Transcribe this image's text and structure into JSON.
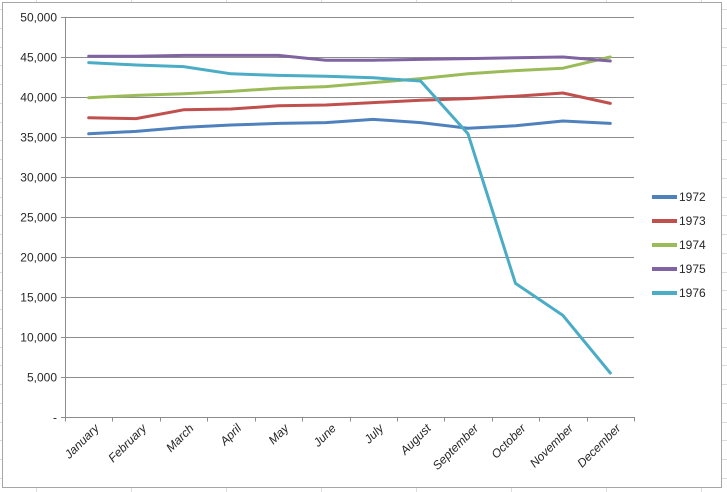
{
  "chart_data": {
    "type": "line",
    "title": "",
    "xlabel": "",
    "ylabel": "",
    "categories": [
      "January",
      "February",
      "March",
      "April",
      "May",
      "June",
      "July",
      "August",
      "September",
      "October",
      "November",
      "December"
    ],
    "series": [
      {
        "name": "1972",
        "color": "#4F81BD",
        "values": [
          35400,
          35700,
          36200,
          36500,
          36700,
          36800,
          37200,
          36800,
          36100,
          36400,
          37000,
          36700
        ]
      },
      {
        "name": "1973",
        "color": "#C0504D",
        "values": [
          37400,
          37300,
          38400,
          38500,
          38900,
          39000,
          39300,
          39600,
          39800,
          40100,
          40500,
          39200
        ]
      },
      {
        "name": "1974",
        "color": "#9BBB59",
        "values": [
          39900,
          40200,
          40400,
          40700,
          41100,
          41300,
          41800,
          42300,
          42900,
          43300,
          43600,
          45000
        ]
      },
      {
        "name": "1975",
        "color": "#8064A2",
        "values": [
          45100,
          45100,
          45200,
          45200,
          45200,
          44600,
          44600,
          44700,
          44800,
          44900,
          45000,
          44500
        ]
      },
      {
        "name": "1976",
        "color": "#4BACC6",
        "values": [
          44300,
          44000,
          43800,
          42900,
          42700,
          42600,
          42400,
          42000,
          35400,
          16700,
          12700,
          5500
        ]
      }
    ],
    "y_axis": {
      "min": 0,
      "max": 50000,
      "step": 5000,
      "tick_labels_top_to_bottom": [
        "50,000",
        "45,000",
        "40,000",
        "35,000",
        "30,000",
        "25,000",
        "20,000",
        "15,000",
        "10,000",
        "5,000",
        "-"
      ]
    },
    "legend": {
      "position": "right",
      "entries": [
        "1972",
        "1973",
        "1974",
        "1975",
        "1976"
      ]
    },
    "grid": true,
    "layout_hints": {
      "x_labels": "italic, rotated 45 degrees up-to-the-right",
      "gridlines": "horizontal only, every 5000",
      "background": "white chart object on faint spreadsheet grid"
    }
  },
  "colors": {
    "gridline": "#8c8c8c",
    "axis": "#8c8c8c",
    "label_text": "#262626",
    "chart_border": "#a6a6a6",
    "sheet_grid": "#dcdcdc",
    "chart_fill": "#ffffff"
  }
}
